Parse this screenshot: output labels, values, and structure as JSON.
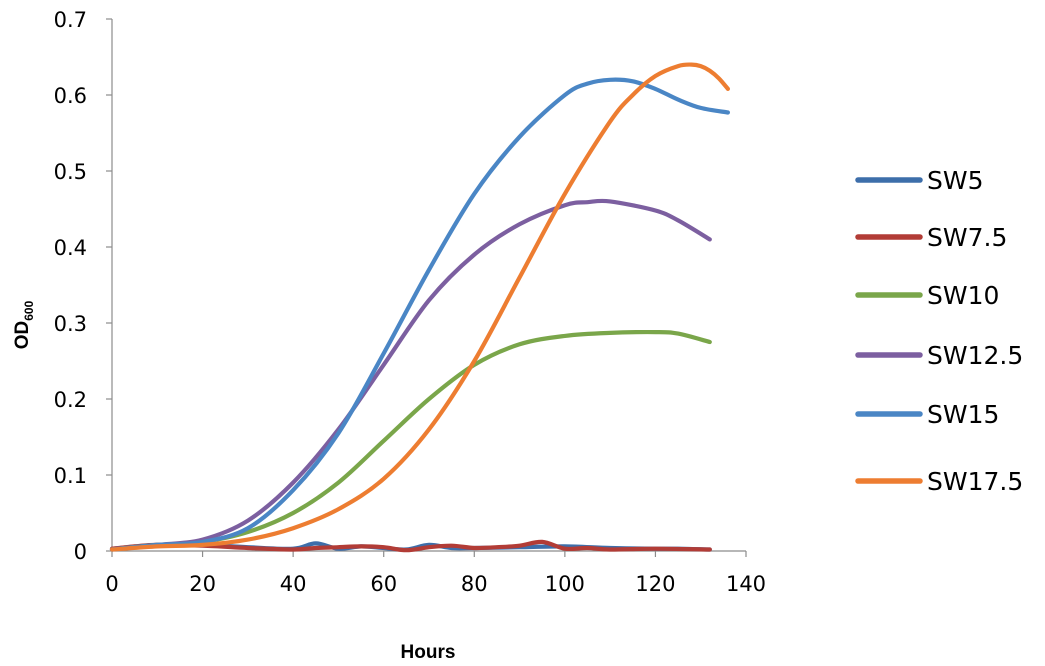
{
  "chart_data": {
    "type": "line",
    "title": "",
    "xlabel": "Hours",
    "ylabel": {
      "main": "OD",
      "sub": "600"
    },
    "xlim": [
      0,
      140
    ],
    "ylim": [
      0,
      0.7
    ],
    "xticks": [
      "0",
      "20",
      "40",
      "60",
      "80",
      "100",
      "120",
      "140"
    ],
    "yticks": [
      "0",
      "0.1",
      "0.2",
      "0.3",
      "0.4",
      "0.5",
      "0.6",
      "0.7"
    ],
    "grid": false,
    "legend_position": "right",
    "series": [
      {
        "name": "SW5",
        "color": "#3d6eaa",
        "x": [
          0,
          10,
          20,
          30,
          40,
          45,
          50,
          55,
          60,
          65,
          70,
          75,
          80,
          90,
          100,
          110,
          120,
          125,
          132
        ],
        "y": [
          0.003,
          0.008,
          0.008,
          0.005,
          0.003,
          0.01,
          0.003,
          0.006,
          0.004,
          0.002,
          0.008,
          0.004,
          0.004,
          0.005,
          0.006,
          0.004,
          0.003,
          0.003,
          0.002
        ]
      },
      {
        "name": "SW7.5",
        "color": "#b23c36",
        "x": [
          0,
          5,
          10,
          20,
          30,
          40,
          45,
          50,
          55,
          60,
          65,
          70,
          75,
          80,
          85,
          90,
          95,
          100,
          105,
          110,
          120,
          132
        ],
        "y": [
          0.003,
          0.006,
          0.008,
          0.007,
          0.004,
          0.002,
          0.004,
          0.005,
          0.006,
          0.005,
          0.001,
          0.005,
          0.007,
          0.004,
          0.005,
          0.007,
          0.012,
          0.003,
          0.004,
          0.002,
          0.003,
          0.002
        ]
      },
      {
        "name": "SW10",
        "color": "#7aa64a",
        "x": [
          0,
          10,
          20,
          30,
          40,
          50,
          60,
          70,
          80,
          90,
          100,
          110,
          120,
          125,
          132
        ],
        "y": [
          0.002,
          0.008,
          0.012,
          0.025,
          0.05,
          0.09,
          0.145,
          0.2,
          0.245,
          0.272,
          0.283,
          0.287,
          0.288,
          0.286,
          0.275
        ]
      },
      {
        "name": "SW12.5",
        "color": "#7c5fa0",
        "x": [
          0,
          10,
          20,
          30,
          40,
          50,
          60,
          70,
          80,
          90,
          100,
          105,
          110,
          120,
          125,
          132
        ],
        "y": [
          0.002,
          0.008,
          0.015,
          0.04,
          0.09,
          0.16,
          0.245,
          0.33,
          0.39,
          0.43,
          0.455,
          0.459,
          0.46,
          0.448,
          0.435,
          0.41
        ]
      },
      {
        "name": "SW15",
        "color": "#4a86c5",
        "x": [
          0,
          10,
          20,
          30,
          40,
          50,
          60,
          70,
          80,
          90,
          100,
          105,
          110,
          115,
          120,
          125,
          130,
          136
        ],
        "y": [
          0.002,
          0.008,
          0.012,
          0.03,
          0.08,
          0.155,
          0.26,
          0.37,
          0.47,
          0.545,
          0.6,
          0.615,
          0.62,
          0.618,
          0.608,
          0.594,
          0.583,
          0.577
        ]
      },
      {
        "name": "SW17.5",
        "color": "#ed7d31",
        "x": [
          0,
          10,
          20,
          30,
          40,
          50,
          60,
          70,
          80,
          90,
          100,
          110,
          115,
          120,
          125,
          128,
          130,
          132,
          134,
          136
        ],
        "y": [
          0.002,
          0.006,
          0.008,
          0.015,
          0.03,
          0.055,
          0.095,
          0.16,
          0.25,
          0.36,
          0.47,
          0.565,
          0.6,
          0.625,
          0.638,
          0.64,
          0.638,
          0.632,
          0.622,
          0.608
        ]
      }
    ]
  }
}
